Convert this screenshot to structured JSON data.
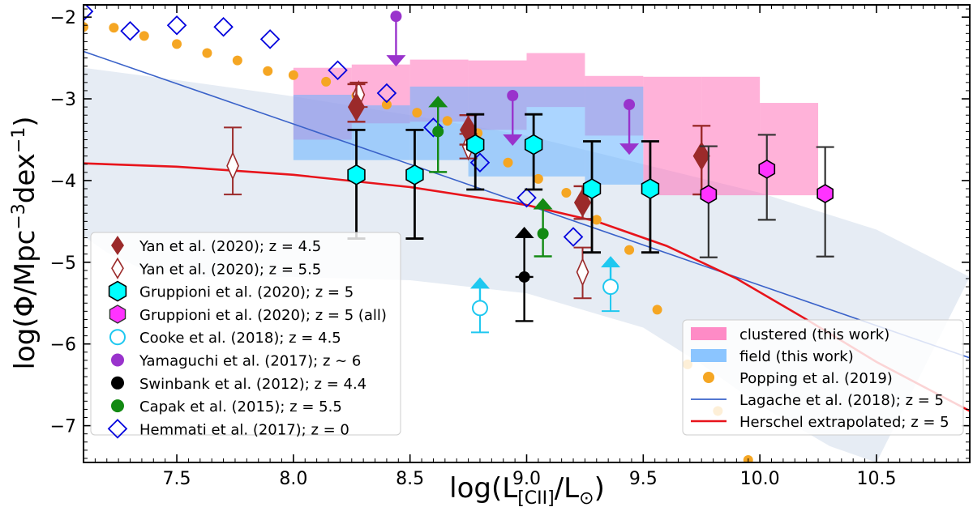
{
  "chart_data": {
    "type": "scatter",
    "title": "",
    "xlabel_main": "log(L",
    "xlabel_sub": "[CII]",
    "xlabel_mid": "/L",
    "xlabel_sun": "⊙",
    "xlabel_end": ")",
    "ylabel_main": "log(Φ/Mpc",
    "ylabel_sup1": "−3",
    "ylabel_mid": "dex",
    "ylabel_sup2": "−1",
    "ylabel_end": ")",
    "xlim": [
      7.1,
      10.9
    ],
    "ylim": [
      -7.45,
      -1.85
    ],
    "x_ticks": [
      "7.5",
      "8.0",
      "8.5",
      "9.0",
      "9.5",
      "10.0",
      "10.5"
    ],
    "y_ticks": [
      "−2",
      "−3",
      "−4",
      "−5",
      "−6",
      "−7"
    ],
    "grid": false,
    "colors": {
      "yan": "#9b2a2a",
      "gruppioni": "#00ffff",
      "gruppioni_all": "#ff33ff",
      "cooke": "#1ec8f0",
      "yamaguchi": "#9933cc",
      "swinbank": "#000000",
      "capak": "#138a13",
      "hemmati": "#0000dd",
      "popping": "#f5a623",
      "lagache": "#3a62c9",
      "herschel": "#e8141b",
      "clustered": "#ff66b3",
      "field": "#66b3ff",
      "band": "#dde5f0"
    },
    "legend_left": [
      "Yan et al. (2020); z = 4.5",
      "Yan et al. (2020); z = 5.5",
      "Gruppioni et al. (2020); z = 5",
      "Gruppioni et al. (2020); z = 5 (all)",
      "Cooke et al. (2018); z = 4.5",
      "Yamaguchi et al. (2017); z ∼ 6",
      "Swinbank et al. (2012); z = 4.4",
      "Capak et al. (2015); z = 5.5",
      "Hemmati et al. (2017); z = 0"
    ],
    "legend_right": [
      "clustered (this work)",
      "field (this work)",
      "Popping et al. (2019)",
      "Lagache et al. (2018); z = 5",
      "Herschel extrapolated; z = 5"
    ],
    "legend_left_placement": "lower-left",
    "legend_right_placement": "lower-right",
    "series": {
      "yan_z45": [
        {
          "x": 8.27,
          "y": -3.1,
          "yerr": [
            0.18,
            0.28
          ]
        },
        {
          "x": 8.75,
          "y": -3.38,
          "yerr": [
            0.18,
            0.18
          ]
        },
        {
          "x": 9.24,
          "y": -4.27,
          "yerr": [
            0.2,
            0.2
          ]
        },
        {
          "x": 9.75,
          "y": -3.7,
          "yerr": [
            0.47,
            0.37
          ]
        }
      ],
      "yan_z55": [
        {
          "x": 7.74,
          "y": -3.82,
          "yerr": [
            0.35,
            0.47
          ]
        },
        {
          "x": 8.28,
          "y": -2.95,
          "yerr": [
            0.15,
            0.15
          ]
        },
        {
          "x": 8.75,
          "y": -3.58,
          "yerr": [
            0.15,
            0.15
          ]
        },
        {
          "x": 9.24,
          "y": -5.12,
          "yerr": [
            0.32,
            0.3
          ]
        }
      ],
      "gruppioni": [
        {
          "x": 8.27,
          "y": -3.93,
          "yerr": [
            0.78,
            0.55
          ]
        },
        {
          "x": 8.52,
          "y": -3.93,
          "yerr": [
            0.78,
            0.55
          ]
        },
        {
          "x": 8.78,
          "y": -3.56,
          "yerr": [
            0.55,
            0.37
          ]
        },
        {
          "x": 9.03,
          "y": -3.56,
          "yerr": [
            0.55,
            0.37
          ]
        },
        {
          "x": 9.28,
          "y": -4.1,
          "yerr": [
            0.78,
            0.58
          ]
        },
        {
          "x": 9.53,
          "y": -4.1,
          "yerr": [
            0.78,
            0.58
          ]
        }
      ],
      "gruppioni_all": [
        {
          "x": 9.78,
          "y": -4.17,
          "yerr": [
            0.77,
            0.59
          ]
        },
        {
          "x": 10.03,
          "y": -3.86,
          "yerr": [
            0.62,
            0.42
          ]
        },
        {
          "x": 10.28,
          "y": -4.16,
          "yerr": [
            0.77,
            0.57
          ]
        }
      ],
      "cooke": [
        {
          "x": 8.8,
          "y": -5.56,
          "lower_limit": true
        },
        {
          "x": 9.36,
          "y": -5.3,
          "lower_limit": true
        }
      ],
      "yamaguchi": [
        {
          "x": 8.44,
          "y": -1.99,
          "upper_limit": true
        },
        {
          "x": 8.94,
          "y": -2.96,
          "upper_limit": true
        },
        {
          "x": 9.44,
          "y": -3.07,
          "upper_limit": true
        }
      ],
      "swinbank": [
        {
          "x": 8.99,
          "y": -5.18,
          "yerr": [
            0.54,
            0
          ],
          "lower_limit": true
        }
      ],
      "capak": [
        {
          "x": 8.62,
          "y": -3.4,
          "lower_limit": true
        },
        {
          "x": 9.07,
          "y": -4.65,
          "lower_limit": true
        }
      ],
      "hemmati": [
        {
          "x": 7.1,
          "y": -1.93
        },
        {
          "x": 7.3,
          "y": -2.17
        },
        {
          "x": 7.5,
          "y": -2.1
        },
        {
          "x": 7.7,
          "y": -2.12
        },
        {
          "x": 7.9,
          "y": -2.27
        },
        {
          "x": 8.19,
          "y": -2.65
        },
        {
          "x": 8.4,
          "y": -2.93
        },
        {
          "x": 8.6,
          "y": -3.35
        },
        {
          "x": 8.8,
          "y": -3.78
        },
        {
          "x": 9.0,
          "y": -4.21
        },
        {
          "x": 9.2,
          "y": -4.69
        }
      ],
      "popping": [
        {
          "x": 7.1,
          "y": -2.12
        },
        {
          "x": 7.23,
          "y": -2.13
        },
        {
          "x": 7.36,
          "y": -2.23
        },
        {
          "x": 7.5,
          "y": -2.33
        },
        {
          "x": 7.63,
          "y": -2.44
        },
        {
          "x": 7.76,
          "y": -2.53
        },
        {
          "x": 7.89,
          "y": -2.66
        },
        {
          "x": 8.0,
          "y": -2.71
        },
        {
          "x": 8.14,
          "y": -2.79
        },
        {
          "x": 8.27,
          "y": -2.96
        },
        {
          "x": 8.4,
          "y": -3.07
        },
        {
          "x": 8.53,
          "y": -3.17
        },
        {
          "x": 8.66,
          "y": -3.27
        },
        {
          "x": 8.79,
          "y": -3.42
        },
        {
          "x": 8.92,
          "y": -3.78
        },
        {
          "x": 9.05,
          "y": -3.98
        },
        {
          "x": 9.17,
          "y": -4.15
        },
        {
          "x": 9.3,
          "y": -4.48
        },
        {
          "x": 9.44,
          "y": -4.85
        },
        {
          "x": 9.56,
          "y": -5.58
        },
        {
          "x": 9.69,
          "y": -6.25
        },
        {
          "x": 9.82,
          "y": -6.82
        },
        {
          "x": 9.95,
          "y": -7.42
        }
      ],
      "lagache": [
        [
          7.1,
          -2.42
        ],
        [
          10.9,
          -6.17
        ]
      ],
      "herschel": [
        [
          7.1,
          -3.79
        ],
        [
          7.5,
          -3.83
        ],
        [
          8.0,
          -3.93
        ],
        [
          8.5,
          -4.08
        ],
        [
          9.0,
          -4.3
        ],
        [
          9.3,
          -4.5
        ],
        [
          9.6,
          -4.8
        ],
        [
          9.9,
          -5.2
        ],
        [
          10.2,
          -5.7
        ],
        [
          10.5,
          -6.22
        ],
        [
          10.7,
          -6.52
        ],
        [
          10.9,
          -6.82
        ]
      ],
      "lagache_band_upper": [
        [
          7.1,
          -2.62
        ],
        [
          7.5,
          -2.77
        ],
        [
          8.0,
          -2.97
        ],
        [
          8.5,
          -3.2
        ],
        [
          9.0,
          -3.45
        ],
        [
          9.5,
          -3.8
        ],
        [
          10.0,
          -4.15
        ],
        [
          10.5,
          -4.6
        ],
        [
          10.9,
          -5.18
        ]
      ],
      "lagache_band_lower": [
        [
          7.1,
          -4.68
        ],
        [
          7.2,
          -4.88
        ],
        [
          7.35,
          -5.08
        ],
        [
          7.55,
          -5.18
        ],
        [
          8.0,
          -5.18
        ],
        [
          8.5,
          -5.22
        ],
        [
          9.0,
          -5.38
        ],
        [
          9.5,
          -5.8
        ],
        [
          9.75,
          -6.25
        ],
        [
          10.0,
          -6.75
        ],
        [
          10.3,
          -7.25
        ],
        [
          10.5,
          -7.45
        ]
      ],
      "clustered_boxes": [
        {
          "x0": 8.0,
          "x1": 8.25,
          "y0": -3.5,
          "y1": -2.62
        },
        {
          "x0": 8.25,
          "x1": 8.5,
          "y0": -3.3,
          "y1": -2.58
        },
        {
          "x0": 8.5,
          "x1": 8.75,
          "y0": -3.28,
          "y1": -2.52
        },
        {
          "x0": 8.75,
          "x1": 9.0,
          "y0": -3.38,
          "y1": -2.53
        },
        {
          "x0": 9.0,
          "x1": 9.25,
          "y0": -3.1,
          "y1": -2.44
        },
        {
          "x0": 9.25,
          "x1": 9.5,
          "y0": -3.45,
          "y1": -2.72
        },
        {
          "x0": 9.5,
          "x1": 9.75,
          "y0": -4.18,
          "y1": -2.73
        },
        {
          "x0": 9.75,
          "x1": 10.0,
          "y0": -4.18,
          "y1": -2.73
        },
        {
          "x0": 10.0,
          "x1": 10.25,
          "y0": -4.18,
          "y1": -3.05
        }
      ],
      "field_boxes": [
        {
          "x0": 8.0,
          "x1": 8.25,
          "y0": -3.75,
          "y1": -2.95
        },
        {
          "x0": 8.25,
          "x1": 8.5,
          "y0": -3.75,
          "y1": -3.08
        },
        {
          "x0": 8.5,
          "x1": 8.75,
          "y0": -3.75,
          "y1": -2.85
        },
        {
          "x0": 8.75,
          "x1": 9.0,
          "y0": -3.95,
          "y1": -2.85
        },
        {
          "x0": 9.0,
          "x1": 9.25,
          "y0": -3.95,
          "y1": -2.85
        },
        {
          "x0": 9.25,
          "x1": 9.5,
          "y0": -4.05,
          "y1": -2.85
        }
      ]
    }
  }
}
